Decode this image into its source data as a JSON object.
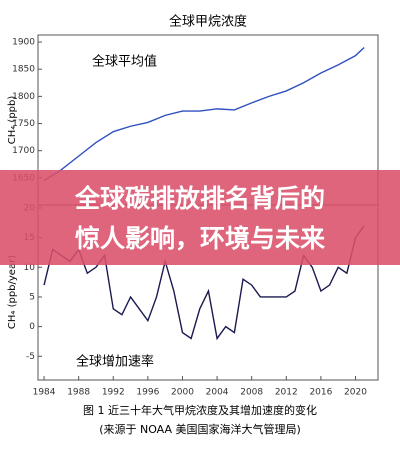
{
  "chart_data": [
    {
      "type": "line",
      "title": "全球甲烷浓度",
      "annotation": "全球平均值",
      "y_label": "CH₄ (ppb)",
      "x": [
        1984,
        1986,
        1988,
        1990,
        1992,
        1994,
        1996,
        1998,
        2000,
        2002,
        2004,
        2006,
        2008,
        2010,
        2012,
        2014,
        2016,
        2018,
        2020,
        2021
      ],
      "series": [
        {
          "name": "全球平均值",
          "color": "#3050c0",
          "values": [
            1645,
            1665,
            1690,
            1715,
            1735,
            1745,
            1752,
            1765,
            1773,
            1773,
            1777,
            1775,
            1788,
            1800,
            1810,
            1825,
            1843,
            1858,
            1875,
            1890
          ]
        }
      ],
      "xlim": [
        1983.3,
        2022.6
      ],
      "ylim": [
        1600,
        1913
      ],
      "yticks": [
        1650,
        1700,
        1750,
        1800,
        1850,
        1900
      ]
    },
    {
      "type": "line",
      "annotation": "全球增加速率",
      "y_label": "CH₄ (ppb/year)",
      "x": [
        1984,
        1985,
        1986,
        1987,
        1988,
        1989,
        1990,
        1991,
        1992,
        1993,
        1994,
        1995,
        1996,
        1997,
        1998,
        1999,
        2000,
        2001,
        2002,
        2003,
        2004,
        2005,
        2006,
        2007,
        2008,
        2009,
        2010,
        2011,
        2012,
        2013,
        2014,
        2015,
        2016,
        2017,
        2018,
        2019,
        2020,
        2021
      ],
      "series": [
        {
          "name": "全球增加速率",
          "color": "#1a1a50",
          "values": [
            7,
            13,
            12,
            11,
            13,
            9,
            10,
            12,
            3,
            2,
            5,
            3,
            1,
            5,
            11,
            6,
            -1,
            -2,
            3,
            6,
            -2,
            0,
            -1,
            8,
            7,
            5,
            5,
            5,
            5,
            6,
            12,
            10,
            6,
            7,
            10,
            9,
            15,
            17
          ]
        }
      ],
      "xlim": [
        1983.3,
        2022.6
      ],
      "ylim": [
        -9,
        20.5
      ],
      "yticks": [
        -5,
        0,
        5,
        10,
        15,
        20
      ],
      "xticks": [
        1984,
        1988,
        1992,
        1996,
        2000,
        2004,
        2008,
        2012,
        2016,
        2020
      ]
    }
  ],
  "banner": [
    "全球碳排放排名背后的",
    "惊人影响，环境与未来"
  ],
  "caption": [
    "图 1 近三十年大气甲烷浓度及其增加速度的变化",
    "(来源于 NOAA 美国国家海洋大气管理局)"
  ]
}
